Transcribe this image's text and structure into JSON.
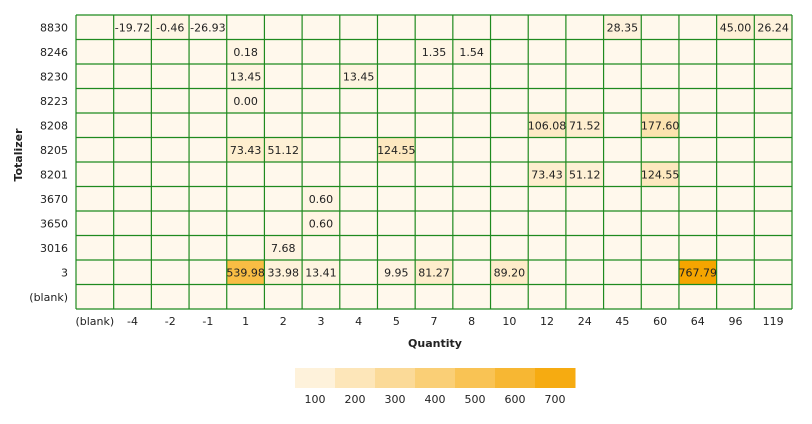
{
  "chart_data": {
    "type": "heatmap",
    "xlabel": "Quantity",
    "ylabel": "Totalizer",
    "x_categories": [
      "(blank)",
      "-4",
      "-2",
      "-1",
      "1",
      "2",
      "3",
      "4",
      "5",
      "7",
      "8",
      "10",
      "12",
      "24",
      "45",
      "60",
      "64",
      "96",
      "119"
    ],
    "y_categories": [
      "8830",
      "8246",
      "8230",
      "8223",
      "8208",
      "8205",
      "8201",
      "3670",
      "3650",
      "3016",
      "3",
      "(blank)"
    ],
    "cells": [
      {
        "y": "8830",
        "x": "-4",
        "value": -19.72,
        "label": "-19.72"
      },
      {
        "y": "8830",
        "x": "-2",
        "value": -0.46,
        "label": "-0.46"
      },
      {
        "y": "8830",
        "x": "-1",
        "value": -26.93,
        "label": "-26.93"
      },
      {
        "y": "8830",
        "x": "45",
        "value": 28.35,
        "label": "28.35"
      },
      {
        "y": "8830",
        "x": "96",
        "value": 45.0,
        "label": "45.00"
      },
      {
        "y": "8830",
        "x": "119",
        "value": 26.24,
        "label": "26.24"
      },
      {
        "y": "8246",
        "x": "1",
        "value": 0.18,
        "label": "0.18"
      },
      {
        "y": "8246",
        "x": "7",
        "value": 1.35,
        "label": "1.35"
      },
      {
        "y": "8246",
        "x": "8",
        "value": 1.54,
        "label": "1.54"
      },
      {
        "y": "8230",
        "x": "1",
        "value": 13.45,
        "label": "13.45"
      },
      {
        "y": "8230",
        "x": "4",
        "value": 13.45,
        "label": "13.45"
      },
      {
        "y": "8223",
        "x": "1",
        "value": 0.0,
        "label": "0.00"
      },
      {
        "y": "8208",
        "x": "12",
        "value": 106.08,
        "label": "106.08"
      },
      {
        "y": "8208",
        "x": "24",
        "value": 71.52,
        "label": "71.52"
      },
      {
        "y": "8208",
        "x": "60",
        "value": 177.6,
        "label": "177.60"
      },
      {
        "y": "8205",
        "x": "1",
        "value": 73.43,
        "label": "73.43"
      },
      {
        "y": "8205",
        "x": "2",
        "value": 51.12,
        "label": "51.12"
      },
      {
        "y": "8205",
        "x": "5",
        "value": 124.55,
        "label": "124.55"
      },
      {
        "y": "8201",
        "x": "12",
        "value": 73.43,
        "label": "73.43"
      },
      {
        "y": "8201",
        "x": "24",
        "value": 51.12,
        "label": "51.12"
      },
      {
        "y": "8201",
        "x": "60",
        "value": 124.55,
        "label": "124.55"
      },
      {
        "y": "3670",
        "x": "3",
        "value": 0.6,
        "label": "0.60"
      },
      {
        "y": "3650",
        "x": "3",
        "value": 0.6,
        "label": "0.60"
      },
      {
        "y": "3016",
        "x": "2",
        "value": 7.68,
        "label": "7.68"
      },
      {
        "y": "3",
        "x": "1",
        "value": 539.98,
        "label": "539.98"
      },
      {
        "y": "3",
        "x": "2",
        "value": 33.98,
        "label": "33.98"
      },
      {
        "y": "3",
        "x": "3",
        "value": 13.41,
        "label": "13.41"
      },
      {
        "y": "3",
        "x": "5",
        "value": 9.95,
        "label": "9.95"
      },
      {
        "y": "3",
        "x": "7",
        "value": 81.27,
        "label": "81.27"
      },
      {
        "y": "3",
        "x": "10",
        "value": 89.2,
        "label": "89.20"
      },
      {
        "y": "3",
        "x": "64",
        "value": 767.79,
        "label": "767.79"
      }
    ],
    "color_scale": {
      "domain": [
        -26.93,
        767.79
      ],
      "min_color": "#fff8ec",
      "max_color": "#f5a500",
      "legend_ticks": [
        100,
        200,
        300,
        400,
        500,
        600,
        700
      ],
      "legend_placement": "bottom-center"
    },
    "grid": true,
    "grid_color": "#1f8a1f"
  }
}
